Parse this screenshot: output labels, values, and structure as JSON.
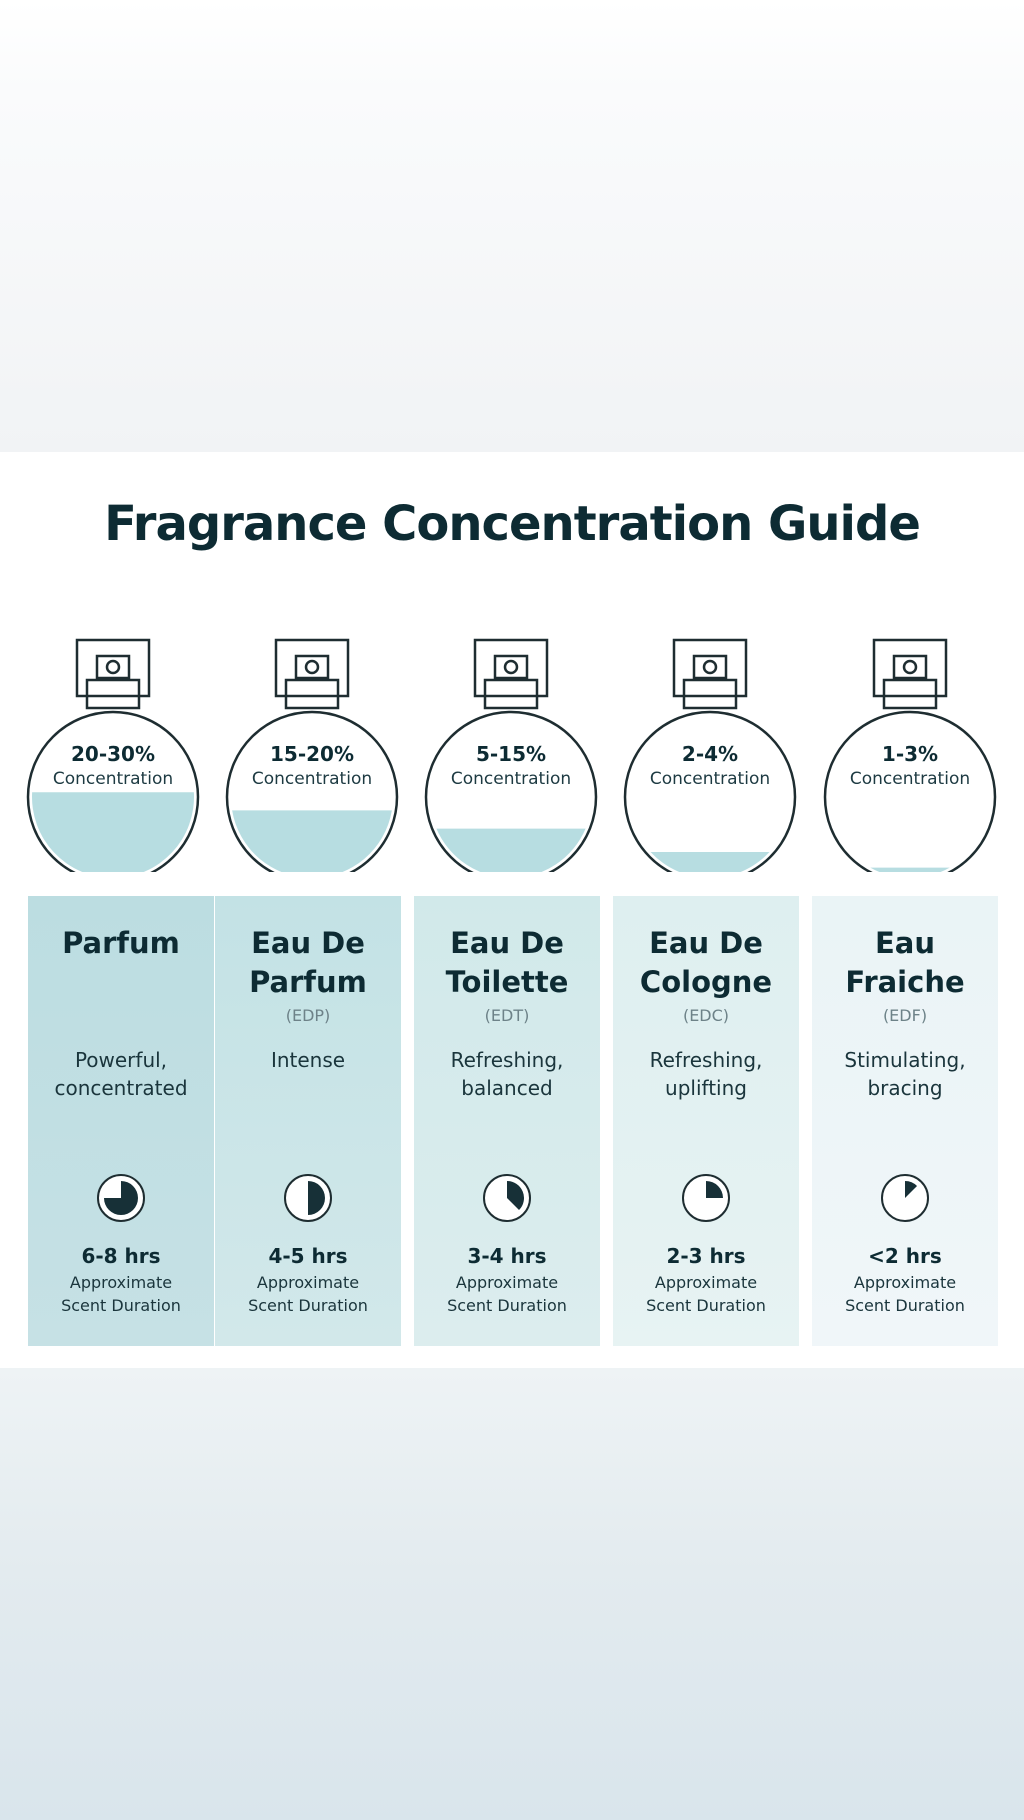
{
  "page": {
    "title": "Fragrance Concentration Guide"
  },
  "colors": {
    "liquid": "#b7dde1",
    "outline": "#1e2d31",
    "title": "#0d2b33"
  },
  "products": [
    {
      "concentration": "20-30%",
      "concentration_label": "Concentration",
      "fill_level": 0.66,
      "name_line1": "Parfum",
      "name_line2": "",
      "abbreviation": "",
      "description_line1": "Powerful,",
      "description_line2": "concentrated",
      "duration": "6-8 hrs",
      "duration_label_line1": "Approximate",
      "duration_label_line2": "Scent Duration",
      "clock_fraction": 0.75
    },
    {
      "concentration": "15-20%",
      "concentration_label": "Concentration",
      "fill_level": 0.52,
      "name_line1": "Eau De",
      "name_line2": "Parfum",
      "abbreviation": "(EDP)",
      "description_line1": "Intense",
      "description_line2": "",
      "duration": "4-5 hrs",
      "duration_label_line1": "Approximate",
      "duration_label_line2": "Scent Duration",
      "clock_fraction": 0.5
    },
    {
      "concentration": "5-15%",
      "concentration_label": "Concentration",
      "fill_level": 0.38,
      "name_line1": "Eau De",
      "name_line2": "Toilette",
      "abbreviation": "(EDT)",
      "description_line1": "Refreshing,",
      "description_line2": "balanced",
      "duration": "3-4 hrs",
      "duration_label_line1": "Approximate",
      "duration_label_line2": "Scent Duration",
      "clock_fraction": 0.375
    },
    {
      "concentration": "2-4%",
      "concentration_label": "Concentration",
      "fill_level": 0.2,
      "name_line1": "Eau De",
      "name_line2": "Cologne",
      "abbreviation": "(EDC)",
      "description_line1": "Refreshing,",
      "description_line2": "uplifting",
      "duration": "2-3 hrs",
      "duration_label_line1": "Approximate",
      "duration_label_line2": "Scent Duration",
      "clock_fraction": 0.25
    },
    {
      "concentration": "1-3%",
      "concentration_label": "Concentration",
      "fill_level": 0.08,
      "name_line1": "Eau",
      "name_line2": "Fraiche",
      "abbreviation": "(EDF)",
      "description_line1": "Stimulating,",
      "description_line2": "bracing",
      "duration": "<2 hrs",
      "duration_label_line1": "Approximate",
      "duration_label_line2": "Scent Duration",
      "clock_fraction": 0.125
    }
  ]
}
